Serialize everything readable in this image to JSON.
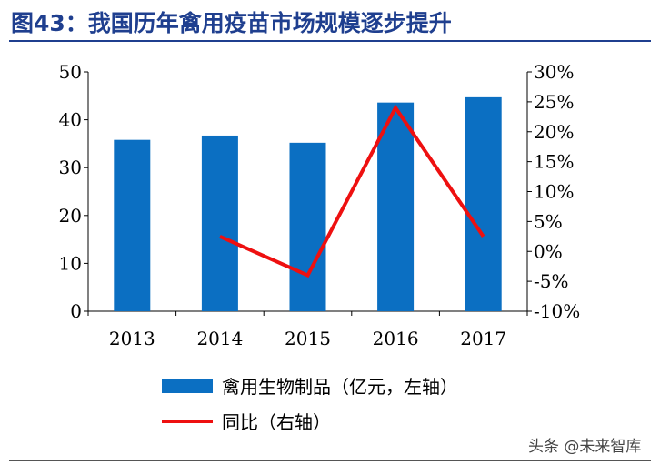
{
  "title": "图43：我国历年禽用疫苗市场规模逐步提升",
  "watermark": "头条 @未来智库",
  "colors": {
    "bar": "#0b6fc2",
    "line": "#ee1010",
    "title": "#1f3f8f"
  },
  "chart_data": {
    "type": "bar",
    "categories": [
      "2013",
      "2014",
      "2015",
      "2016",
      "2017"
    ],
    "series": [
      {
        "name": "禽用生物制品（亿元，左轴）",
        "type": "bar",
        "axis": "left",
        "values": [
          35.8,
          36.7,
          35.2,
          43.6,
          44.7
        ]
      },
      {
        "name": "同比（右轴）",
        "type": "line",
        "axis": "right",
        "values": [
          null,
          2.5,
          -4.0,
          24.0,
          2.5
        ]
      }
    ],
    "ylim_left": [
      0,
      50
    ],
    "ylim_right": [
      -10,
      30
    ],
    "yticks_left": [
      "0",
      "10",
      "20",
      "30",
      "40",
      "50"
    ],
    "yticks_right": [
      "-10%",
      "-5%",
      "0%",
      "5%",
      "10%",
      "15%",
      "20%",
      "25%",
      "30%"
    ],
    "legend_position": "bottom",
    "grid": false
  }
}
